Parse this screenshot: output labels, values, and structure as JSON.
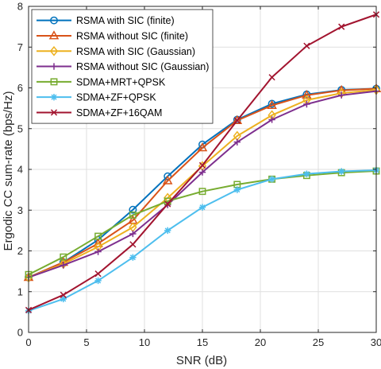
{
  "chart_data": {
    "type": "line",
    "xlabel": "SNR (dB)",
    "ylabel": "Ergodic CC sum-rate (bps/Hz)",
    "xlim": [
      0,
      30
    ],
    "ylim": [
      0,
      8
    ],
    "xticks": [
      0,
      5,
      10,
      15,
      20,
      25,
      30
    ],
    "yticks": [
      0,
      1,
      2,
      3,
      4,
      5,
      6,
      7,
      8
    ],
    "grid": true,
    "legend_position": "top-left",
    "x": [
      0,
      3,
      6,
      9,
      12,
      15,
      18,
      21,
      24,
      27,
      30
    ],
    "series": [
      {
        "name": "RSMA with SIC (finite)",
        "color": "#0072BD",
        "marker": "circle",
        "values": [
          1.35,
          1.72,
          2.27,
          3.01,
          3.83,
          4.61,
          5.22,
          5.61,
          5.84,
          5.95,
          5.98
        ]
      },
      {
        "name": "RSMA without SIC (finite)",
        "color": "#D95319",
        "marker": "triangle",
        "values": [
          1.35,
          1.72,
          2.18,
          2.75,
          3.72,
          4.53,
          5.2,
          5.57,
          5.82,
          5.94,
          5.98
        ]
      },
      {
        "name": "RSMA with SIC (Gaussian)",
        "color": "#EDB120",
        "marker": "diamond",
        "values": [
          1.35,
          1.68,
          2.1,
          2.58,
          3.3,
          4.08,
          4.82,
          5.33,
          5.7,
          5.87,
          5.95
        ]
      },
      {
        "name": "RSMA without SIC (Gaussian)",
        "color": "#7E2F8E",
        "marker": "plus",
        "values": [
          1.35,
          1.65,
          1.98,
          2.42,
          3.13,
          3.93,
          4.67,
          5.22,
          5.6,
          5.82,
          5.92
        ]
      },
      {
        "name": "SDMA+MRT+QPSK",
        "color": "#77AC30",
        "marker": "square",
        "values": [
          1.42,
          1.85,
          2.36,
          2.88,
          3.22,
          3.46,
          3.63,
          3.76,
          3.85,
          3.92,
          3.96
        ]
      },
      {
        "name": "SDMA+ZF+QPSK",
        "color": "#4DBEEE",
        "marker": "asterisk",
        "values": [
          0.53,
          0.82,
          1.27,
          1.84,
          2.5,
          3.07,
          3.5,
          3.76,
          3.89,
          3.95,
          3.98
        ]
      },
      {
        "name": "SDMA+ZF+16QAM",
        "color": "#A2142F",
        "marker": "x",
        "values": [
          0.55,
          0.92,
          1.44,
          2.16,
          3.15,
          4.1,
          5.2,
          6.26,
          7.03,
          7.5,
          7.8
        ]
      }
    ]
  }
}
